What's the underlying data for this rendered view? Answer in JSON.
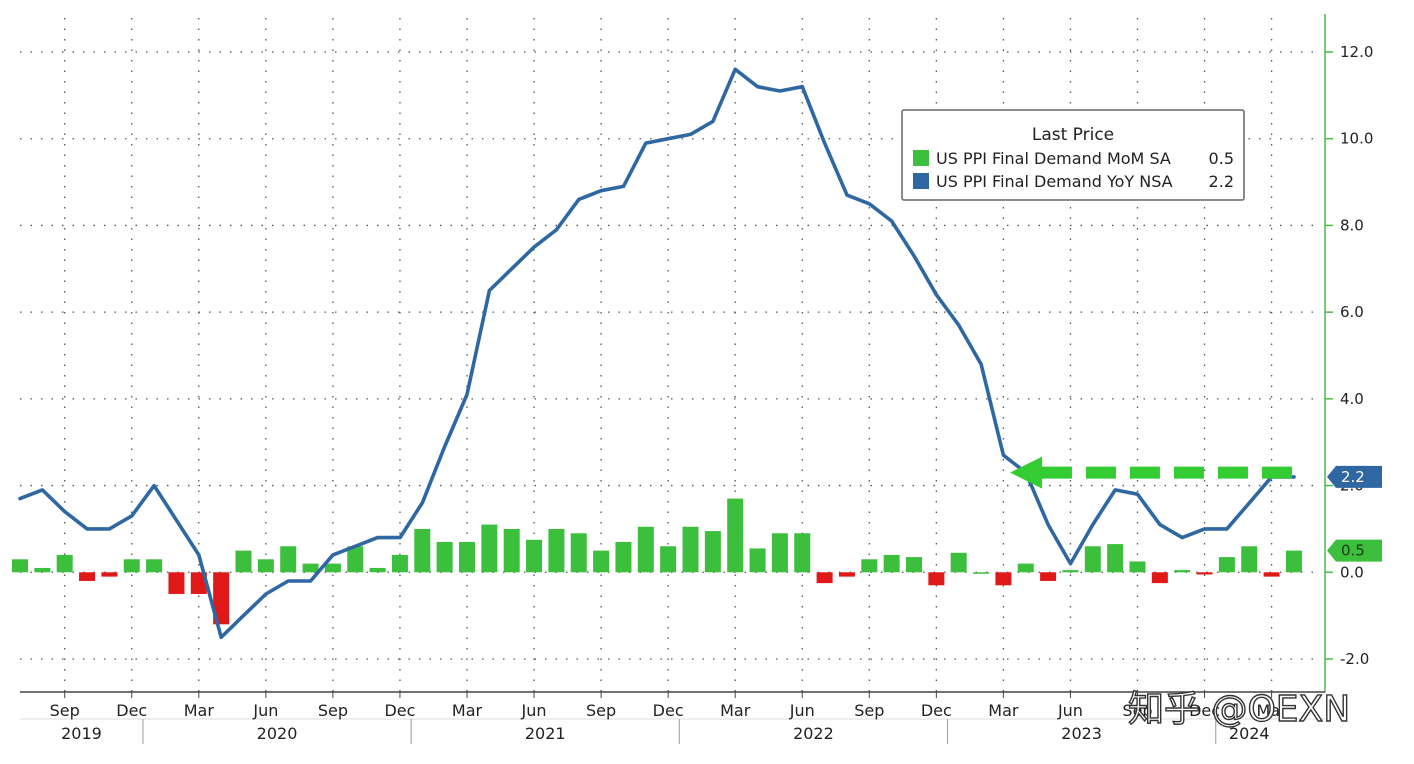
{
  "chart_data": {
    "type": "bar+line",
    "title": "",
    "legend": {
      "title": "Last Price",
      "placement": "top-right",
      "items": [
        {
          "label": "US PPI Final Demand MoM SA",
          "last": "0.5",
          "color": "#3cbf3c"
        },
        {
          "label": "US PPI Final Demand YoY NSA",
          "last": "2.2",
          "color": "#2e67a2"
        }
      ]
    },
    "y_axis": {
      "side": "right",
      "range": [
        -2.6,
        12.9
      ],
      "ticks": [
        12.0,
        10.0,
        8.0,
        6.0,
        4.0,
        2.0,
        0.0,
        -2.0
      ],
      "tick_labels": [
        "12.0",
        "10.0",
        "8.0",
        "6.0",
        "4.0",
        "2.0",
        "0.0",
        "-2.0"
      ],
      "grid": true
    },
    "x_axis": {
      "start_month": "2019-07",
      "end_month": "2024-02",
      "month_ticks": [
        {
          "label": "Sep",
          "index": 2
        },
        {
          "label": "Dec",
          "index": 5
        },
        {
          "label": "Mar",
          "index": 8
        },
        {
          "label": "Jun",
          "index": 11
        },
        {
          "label": "Sep",
          "index": 14
        },
        {
          "label": "Dec",
          "index": 17
        },
        {
          "label": "Mar",
          "index": 20
        },
        {
          "label": "Jun",
          "index": 23
        },
        {
          "label": "Sep",
          "index": 26
        },
        {
          "label": "Dec",
          "index": 29
        },
        {
          "label": "Mar",
          "index": 32
        },
        {
          "label": "Jun",
          "index": 35
        },
        {
          "label": "Sep",
          "index": 38
        },
        {
          "label": "Dec",
          "index": 41
        },
        {
          "label": "Mar",
          "index": 44
        },
        {
          "label": "Jun",
          "index": 47
        },
        {
          "label": "Sep",
          "index": 50
        },
        {
          "label": "Dec",
          "index": 53
        },
        {
          "label": "Mar",
          "index": 56
        }
      ],
      "years": [
        {
          "label": "2019",
          "from": 0,
          "to": 6
        },
        {
          "label": "2020",
          "from": 6,
          "to": 18
        },
        {
          "label": "2021",
          "from": 18,
          "to": 30
        },
        {
          "label": "2022",
          "from": 30,
          "to": 42
        },
        {
          "label": "2023",
          "from": 42,
          "to": 54
        },
        {
          "label": "2024",
          "from": 54,
          "to": 57
        }
      ]
    },
    "series": [
      {
        "name": "US PPI Final Demand MoM SA",
        "type": "bar",
        "color_positive": "#3cbf3c",
        "color_negative": "#e01818",
        "values": [
          0.3,
          0.1,
          0.4,
          -0.2,
          -0.1,
          0.3,
          0.3,
          -0.5,
          -0.5,
          -1.2,
          0.5,
          0.3,
          0.6,
          0.2,
          0.2,
          0.6,
          0.1,
          0.4,
          1.0,
          0.7,
          0.7,
          1.1,
          1.0,
          0.75,
          1.0,
          0.9,
          0.5,
          0.7,
          1.05,
          0.6,
          1.05,
          0.95,
          1.7,
          0.55,
          0.9,
          0.9,
          -0.25,
          -0.1,
          0.3,
          0.4,
          0.35,
          -0.3,
          0.45,
          0.0,
          -0.3,
          0.2,
          -0.2,
          0.05,
          0.6,
          0.65,
          0.25,
          -0.25,
          0.05,
          -0.05,
          0.35,
          0.6,
          -0.1,
          0.5
        ]
      },
      {
        "name": "US PPI Final Demand YoY NSA",
        "type": "line",
        "color": "#2e67a2",
        "values": [
          1.7,
          1.9,
          1.4,
          1.0,
          1.0,
          1.3,
          2.0,
          1.2,
          0.4,
          -1.5,
          -1.0,
          -0.5,
          -0.2,
          -0.2,
          0.4,
          0.6,
          0.8,
          0.8,
          1.6,
          2.9,
          4.1,
          6.5,
          7.0,
          7.5,
          7.9,
          8.6,
          8.8,
          8.9,
          9.9,
          10.0,
          10.1,
          10.4,
          11.6,
          11.2,
          11.1,
          11.2,
          9.9,
          8.7,
          8.5,
          8.1,
          7.3,
          6.4,
          5.7,
          4.8,
          2.7,
          2.3,
          1.1,
          0.2,
          1.1,
          1.9,
          1.8,
          1.1,
          0.8,
          1.0,
          1.0,
          1.6,
          2.2,
          2.2
        ]
      }
    ],
    "annotations": [
      {
        "type": "dashed-arrow",
        "color": "#33cc33",
        "y": 2.3,
        "from_index": 57,
        "to_index": 44.3
      }
    ],
    "badges": [
      {
        "label": "2.2",
        "value": 2.2,
        "color": "#2e67a2"
      },
      {
        "label": "0.5",
        "value": 0.5,
        "color": "#3cbf3c"
      }
    ]
  },
  "watermark": "知乎 @OEXN"
}
